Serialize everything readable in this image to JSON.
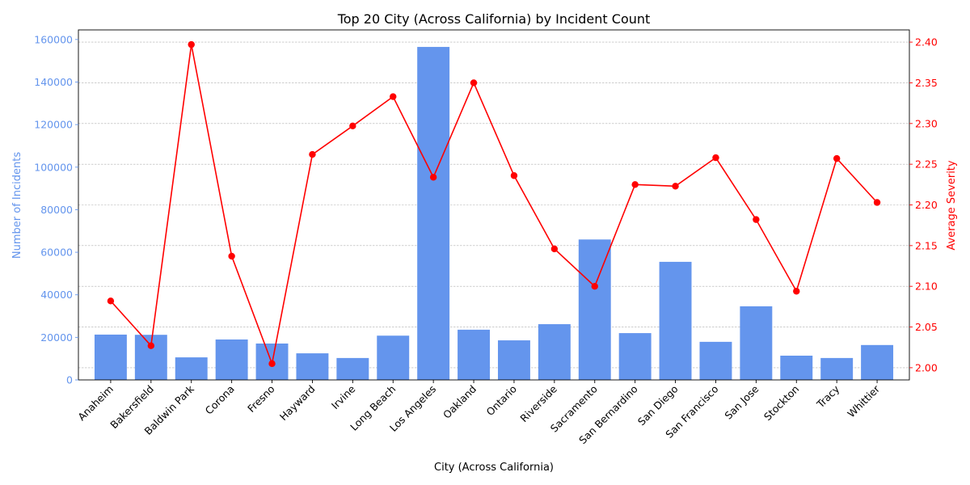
{
  "chart_data": {
    "type": "bar",
    "title": "Top 20 City (Across California) by Incident Count",
    "xlabel": "City (Across California)",
    "ylabel": "Number of Incidents",
    "y2label": "Average Severity",
    "categories": [
      "Anaheim",
      "Bakersfield",
      "Baldwin Park",
      "Corona",
      "Fresno",
      "Hayward",
      "Irvine",
      "Long Beach",
      "Los Angeles",
      "Oakland",
      "Ontario",
      "Riverside",
      "Sacramento",
      "San Bernardino",
      "San Diego",
      "San Francisco",
      "San Jose",
      "Stockton",
      "Tracy",
      "Whittier"
    ],
    "series": [
      {
        "values": [
          21300,
          21200,
          10600,
          19000,
          17100,
          12500,
          10300,
          20800,
          156500,
          23600,
          18600,
          26200,
          66000,
          22000,
          55500,
          17900,
          34600,
          11400,
          10300,
          16400
        ]
      },
      {
        "values": [
          2.082,
          2.027,
          2.397,
          2.137,
          2.005,
          2.262,
          2.297,
          2.333,
          2.234,
          2.35,
          2.236,
          2.146,
          2.1,
          2.225,
          2.223,
          2.258,
          2.182,
          2.094,
          2.257,
          2.203
        ]
      }
    ],
    "ylim": [
      0,
      164500
    ],
    "y2lim": [
      1.985,
      2.415
    ],
    "yticks": [
      0,
      20000,
      40000,
      60000,
      80000,
      100000,
      120000,
      140000,
      160000
    ],
    "y2ticks": [
      "2.00",
      "2.05",
      "2.10",
      "2.15",
      "2.20",
      "2.25",
      "2.30",
      "2.35",
      "2.40"
    ],
    "grid": true,
    "colors": {
      "bar": "#6495ed",
      "line": "#ff0000",
      "left_axis": "#6495ed",
      "right_axis": "#ff0000"
    }
  }
}
